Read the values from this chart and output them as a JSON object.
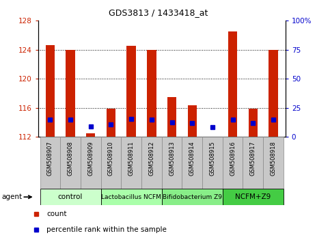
{
  "title": "GDS3813 / 1433418_at",
  "samples": [
    "GSM508907",
    "GSM508908",
    "GSM508909",
    "GSM508910",
    "GSM508911",
    "GSM508912",
    "GSM508913",
    "GSM508914",
    "GSM508915",
    "GSM508916",
    "GSM508917",
    "GSM508918"
  ],
  "count_values": [
    124.6,
    124.0,
    112.5,
    115.9,
    124.5,
    124.0,
    117.5,
    116.3,
    111.8,
    126.5,
    115.9,
    124.0
  ],
  "count_base": 112.0,
  "percentile_values": [
    14.5,
    15.0,
    9.0,
    10.5,
    15.5,
    15.0,
    12.5,
    12.0,
    8.5,
    15.0,
    12.0,
    14.5
  ],
  "ylim_left": [
    112,
    128
  ],
  "yticks_left": [
    112,
    116,
    120,
    124,
    128
  ],
  "yticks_right": [
    0,
    25,
    50,
    75,
    100
  ],
  "yright_labels": [
    "0",
    "25",
    "50",
    "75",
    "100%"
  ],
  "groups": [
    {
      "label": "control",
      "indices": [
        0,
        1,
        2
      ],
      "color": "#ccffcc"
    },
    {
      "label": "Lactobacillus NCFM",
      "indices": [
        3,
        4,
        5
      ],
      "color": "#aaffaa"
    },
    {
      "label": "Bifidobacterium Z9",
      "indices": [
        6,
        7,
        8
      ],
      "color": "#88ee88"
    },
    {
      "label": "NCFM+Z9",
      "indices": [
        9,
        10,
        11
      ],
      "color": "#44cc44"
    }
  ],
  "bar_color": "#cc2200",
  "dot_color": "#0000cc",
  "bar_width": 0.45,
  "left_label_color": "#cc2200",
  "right_label_color": "#0000cc",
  "grid_color": "black",
  "xlabel_bg": "#c8c8c8",
  "agent_label": "agent"
}
